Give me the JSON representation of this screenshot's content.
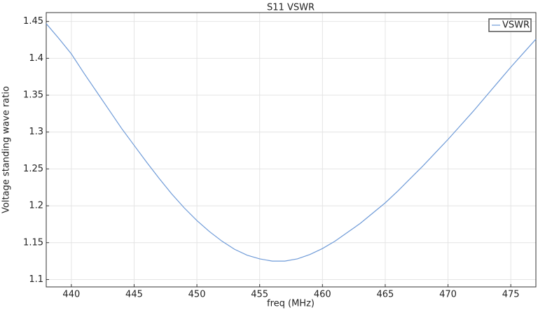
{
  "chart_data": {
    "type": "line",
    "title": "S11 VSWR",
    "x_label": "freq (MHz)",
    "y_label": "Voltage standing wave ratio",
    "x": [
      438,
      439,
      440,
      441,
      442,
      443,
      444,
      445,
      446,
      447,
      448,
      449,
      450,
      451,
      452,
      453,
      454,
      455,
      456,
      457,
      458,
      459,
      460,
      461,
      462,
      463,
      464,
      465,
      466,
      467,
      468,
      469,
      470,
      471,
      472,
      473,
      474,
      475,
      476,
      477
    ],
    "series": [
      {
        "name": "VSWR",
        "color": "#6f9bd8",
        "values": [
          1.447,
          1.427,
          1.406,
          1.38,
          1.355,
          1.33,
          1.305,
          1.282,
          1.259,
          1.237,
          1.216,
          1.197,
          1.18,
          1.165,
          1.152,
          1.141,
          1.133,
          1.128,
          1.125,
          1.125,
          1.128,
          1.134,
          1.142,
          1.152,
          1.164,
          1.176,
          1.19,
          1.204,
          1.22,
          1.237,
          1.254,
          1.272,
          1.29,
          1.309,
          1.328,
          1.348,
          1.368,
          1.388,
          1.407,
          1.426
        ]
      }
    ],
    "xlim": [
      438,
      477
    ],
    "xticks": [
      440,
      445,
      450,
      455,
      460,
      465,
      470,
      475
    ],
    "ylim": [
      1.09,
      1.462
    ],
    "yticks": [
      1.1,
      1.15,
      1.2,
      1.25,
      1.3,
      1.35,
      1.4,
      1.45
    ],
    "grid": true,
    "legend": "upper-right"
  }
}
